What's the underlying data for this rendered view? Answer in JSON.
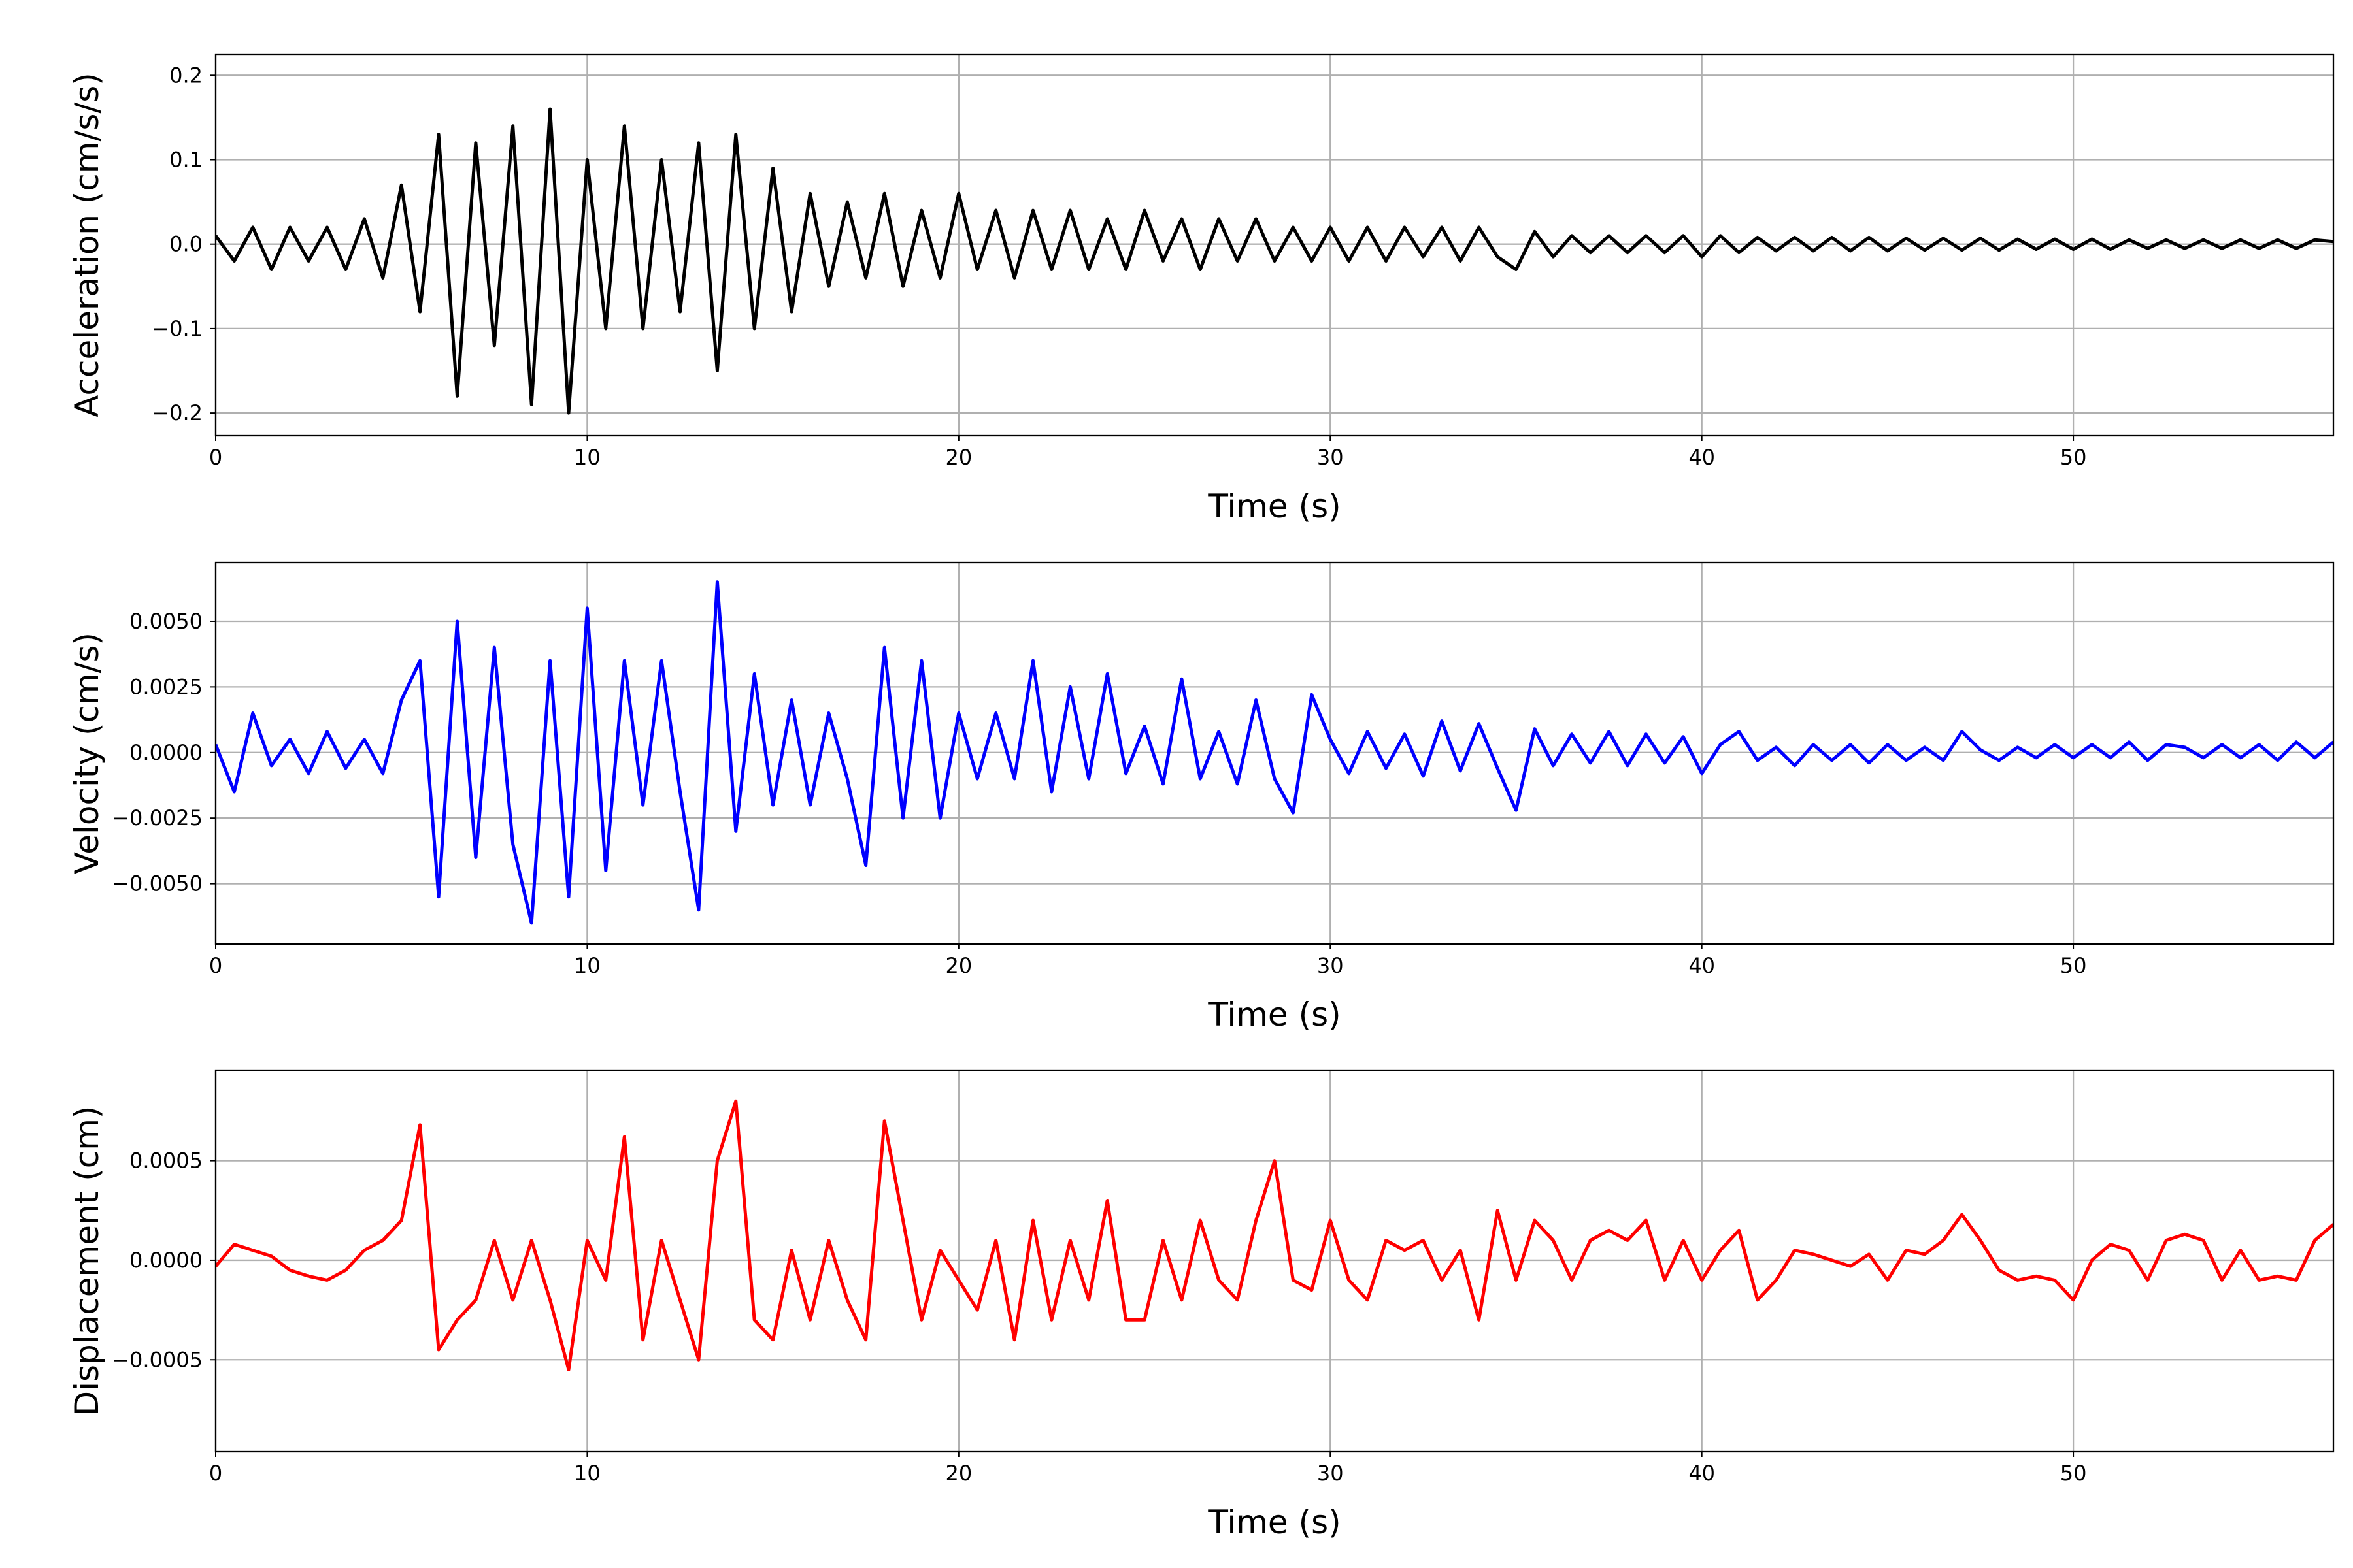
{
  "chart_data": [
    {
      "type": "line",
      "xlabel": "Time (s)",
      "ylabel": "Acceleration (cm/s/s)",
      "xlim": [
        0,
        57
      ],
      "xticks": [
        0,
        10,
        20,
        30,
        40,
        50
      ],
      "ylim": [
        -0.227,
        0.225
      ],
      "yticks": [
        {
          "value": -0.2,
          "label": "−0.2"
        },
        {
          "value": -0.1,
          "label": "−0.1"
        },
        {
          "value": 0,
          "label": "0.0"
        },
        {
          "value": 0.1,
          "label": "0.1"
        },
        {
          "value": 0.2,
          "label": "0.2"
        }
      ],
      "grid": true,
      "x": [
        0,
        0.5,
        1,
        1.5,
        2,
        2.5,
        3,
        3.5,
        4,
        4.5,
        5,
        5.5,
        6,
        6.5,
        7,
        7.5,
        8,
        8.5,
        9,
        9.5,
        10,
        10.5,
        11,
        11.5,
        12,
        12.5,
        13,
        13.5,
        14,
        14.5,
        15,
        15.5,
        16,
        16.5,
        17,
        17.5,
        18,
        18.5,
        19,
        19.5,
        20,
        20.5,
        21,
        21.5,
        22,
        22.5,
        23,
        23.5,
        24,
        24.5,
        25,
        25.5,
        26,
        26.5,
        27,
        27.5,
        28,
        28.5,
        29,
        29.5,
        30,
        30.5,
        31,
        31.5,
        32,
        32.5,
        33,
        33.5,
        34,
        34.5,
        35,
        35.5,
        36,
        36.5,
        37,
        37.5,
        38,
        38.5,
        39,
        39.5,
        40,
        40.5,
        41,
        41.5,
        42,
        42.5,
        43,
        43.5,
        44,
        44.5,
        45,
        45.5,
        46,
        46.5,
        47,
        47.5,
        48,
        48.5,
        49,
        49.5,
        50,
        50.5,
        51,
        51.5,
        52,
        52.5,
        53,
        53.5,
        54,
        54.5,
        55,
        55.5,
        56,
        56.5,
        57
      ],
      "series": [
        {
          "name": "Acceleration",
          "color": "#000000",
          "values": [
            0.01,
            -0.02,
            0.02,
            -0.03,
            0.02,
            -0.02,
            0.02,
            -0.03,
            0.03,
            -0.04,
            0.07,
            -0.08,
            0.13,
            -0.18,
            0.12,
            -0.12,
            0.14,
            -0.19,
            0.16,
            -0.2,
            0.1,
            -0.1,
            0.14,
            -0.1,
            0.1,
            -0.08,
            0.12,
            -0.15,
            0.13,
            -0.1,
            0.09,
            -0.08,
            0.06,
            -0.05,
            0.05,
            -0.04,
            0.06,
            -0.05,
            0.04,
            -0.04,
            0.06,
            -0.03,
            0.04,
            -0.04,
            0.04,
            -0.03,
            0.04,
            -0.03,
            0.03,
            -0.03,
            0.04,
            -0.02,
            0.03,
            -0.03,
            0.03,
            -0.02,
            0.03,
            -0.02,
            0.02,
            -0.02,
            0.02,
            -0.02,
            0.02,
            -0.02,
            0.02,
            -0.015,
            0.02,
            -0.02,
            0.02,
            -0.015,
            -0.03,
            0.015,
            -0.015,
            0.01,
            -0.01,
            0.01,
            -0.01,
            0.01,
            -0.01,
            0.01,
            -0.015,
            0.01,
            -0.01,
            0.008,
            -0.008,
            0.008,
            -0.008,
            0.008,
            -0.008,
            0.008,
            -0.008,
            0.007,
            -0.007,
            0.007,
            -0.007,
            0.007,
            -0.007,
            0.006,
            -0.006,
            0.006,
            -0.006,
            0.006,
            -0.006,
            0.005,
            -0.005,
            0.005,
            -0.005,
            0.005,
            -0.005,
            0.005,
            -0.005,
            0.005,
            -0.005,
            0.005,
            0.003
          ]
        }
      ]
    },
    {
      "type": "line",
      "xlabel": "Time (s)",
      "ylabel": "Velocity (cm/s)",
      "xlim": [
        0,
        57
      ],
      "xticks": [
        0,
        10,
        20,
        30,
        40,
        50
      ],
      "ylim": [
        -0.0073,
        0.00724
      ],
      "yticks": [
        {
          "value": -0.005,
          "label": "−0.0050"
        },
        {
          "value": -0.0025,
          "label": "−0.0025"
        },
        {
          "value": 0,
          "label": "0.0000"
        },
        {
          "value": 0.0025,
          "label": "0.0025"
        },
        {
          "value": 0.005,
          "label": "0.0050"
        }
      ],
      "grid": true,
      "x": [
        0,
        0.5,
        1,
        1.5,
        2,
        2.5,
        3,
        3.5,
        4,
        4.5,
        5,
        5.5,
        6,
        6.5,
        7,
        7.5,
        8,
        8.5,
        9,
        9.5,
        10,
        10.5,
        11,
        11.5,
        12,
        12.5,
        13,
        13.5,
        14,
        14.5,
        15,
        15.5,
        16,
        16.5,
        17,
        17.5,
        18,
        18.5,
        19,
        19.5,
        20,
        20.5,
        21,
        21.5,
        22,
        22.5,
        23,
        23.5,
        24,
        24.5,
        25,
        25.5,
        26,
        26.5,
        27,
        27.5,
        28,
        28.5,
        29,
        29.5,
        30,
        30.5,
        31,
        31.5,
        32,
        32.5,
        33,
        33.5,
        34,
        34.5,
        35,
        35.5,
        36,
        36.5,
        37,
        37.5,
        38,
        38.5,
        39,
        39.5,
        40,
        40.5,
        41,
        41.5,
        42,
        42.5,
        43,
        43.5,
        44,
        44.5,
        45,
        45.5,
        46,
        46.5,
        47,
        47.5,
        48,
        48.5,
        49,
        49.5,
        50,
        50.5,
        51,
        51.5,
        52,
        52.5,
        53,
        53.5,
        54,
        54.5,
        55,
        55.5,
        56,
        56.5,
        57
      ],
      "series": [
        {
          "name": "Velocity",
          "color": "#0000ff",
          "values": [
            0.0003,
            -0.0015,
            0.0015,
            -0.0005,
            0.0005,
            -0.0008,
            0.0008,
            -0.0006,
            0.0005,
            -0.0008,
            0.002,
            0.0035,
            -0.0055,
            0.005,
            -0.004,
            0.004,
            -0.0035,
            -0.0065,
            0.0035,
            -0.0055,
            0.0055,
            -0.0045,
            0.0035,
            -0.002,
            0.0035,
            -0.0015,
            -0.006,
            0.0065,
            -0.003,
            0.003,
            -0.002,
            0.002,
            -0.002,
            0.0015,
            -0.001,
            -0.0043,
            0.004,
            -0.0025,
            0.0035,
            -0.0025,
            0.0015,
            -0.001,
            0.0015,
            -0.001,
            0.0035,
            -0.0015,
            0.0025,
            -0.001,
            0.003,
            -0.0008,
            0.001,
            -0.0012,
            0.0028,
            -0.001,
            0.0008,
            -0.0012,
            0.002,
            -0.001,
            -0.0023,
            0.0022,
            0.0005,
            -0.0008,
            0.0008,
            -0.0006,
            0.0007,
            -0.0009,
            0.0012,
            -0.0007,
            0.0011,
            -0.0006,
            -0.0022,
            0.0009,
            -0.0005,
            0.0007,
            -0.0004,
            0.0008,
            -0.0005,
            0.0007,
            -0.0004,
            0.0006,
            -0.0008,
            0.0003,
            0.0008,
            -0.0003,
            0.0002,
            -0.0005,
            0.0003,
            -0.0003,
            0.0003,
            -0.0004,
            0.0003,
            -0.0003,
            0.0002,
            -0.0003,
            0.0008,
            0.0001,
            -0.0003,
            0.0002,
            -0.0002,
            0.0003,
            -0.0002,
            0.0003,
            -0.0002,
            0.0004,
            -0.0003,
            0.0003,
            0.0002,
            -0.0002,
            0.0003,
            -0.0002,
            0.0003,
            -0.0003,
            0.0004,
            -0.0002,
            0.0004
          ]
        }
      ]
    },
    {
      "type": "line",
      "xlabel": "Time (s)",
      "ylabel": "Displacement (cm)",
      "xlim": [
        0,
        57
      ],
      "xticks": [
        0,
        10,
        20,
        30,
        40,
        50
      ],
      "ylim": [
        -0.000962,
        0.000955
      ],
      "yticks": [
        {
          "value": -0.0005,
          "label": "−0.0005"
        },
        {
          "value": 0,
          "label": "0.0000"
        },
        {
          "value": 0.0005,
          "label": "0.0005"
        }
      ],
      "grid": true,
      "x": [
        0,
        0.5,
        1,
        1.5,
        2,
        2.5,
        3,
        3.5,
        4,
        4.5,
        5,
        5.5,
        6,
        6.5,
        7,
        7.5,
        8,
        8.5,
        9,
        9.5,
        10,
        10.5,
        11,
        11.5,
        12,
        12.5,
        13,
        13.5,
        14,
        14.5,
        15,
        15.5,
        16,
        16.5,
        17,
        17.5,
        18,
        18.5,
        19,
        19.5,
        20,
        20.5,
        21,
        21.5,
        22,
        22.5,
        23,
        23.5,
        24,
        24.5,
        25,
        25.5,
        26,
        26.5,
        27,
        27.5,
        28,
        28.5,
        29,
        29.5,
        30,
        30.5,
        31,
        31.5,
        32,
        32.5,
        33,
        33.5,
        34,
        34.5,
        35,
        35.5,
        36,
        36.5,
        37,
        37.5,
        38,
        38.5,
        39,
        39.5,
        40,
        40.5,
        41,
        41.5,
        42,
        42.5,
        43,
        43.5,
        44,
        44.5,
        45,
        45.5,
        46,
        46.5,
        47,
        47.5,
        48,
        48.5,
        49,
        49.5,
        50,
        50.5,
        51,
        51.5,
        52,
        52.5,
        53,
        53.5,
        54,
        54.5,
        55,
        55.5,
        56,
        56.5,
        57
      ],
      "series": [
        {
          "name": "Displacement",
          "color": "#ff0000",
          "values": [
            -3e-05,
            8e-05,
            5e-05,
            2e-05,
            -5e-05,
            -8e-05,
            -0.0001,
            -5e-05,
            5e-05,
            0.0001,
            0.0002,
            0.00068,
            -0.00045,
            -0.0003,
            -0.0002,
            0.0001,
            -0.0002,
            0.0001,
            -0.0002,
            -0.00055,
            0.0001,
            -0.0001,
            0.00062,
            -0.0004,
            0.0001,
            -0.0002,
            -0.0005,
            0.0005,
            0.0008,
            -0.0003,
            -0.0004,
            5e-05,
            -0.0003,
            0.0001,
            -0.0002,
            -0.0004,
            0.0007,
            0.0002,
            -0.0003,
            5e-05,
            -0.0001,
            -0.00025,
            0.0001,
            -0.0004,
            0.0002,
            -0.0003,
            0.0001,
            -0.0002,
            0.0003,
            -0.0003,
            -0.0003,
            0.0001,
            -0.0002,
            0.0002,
            -0.0001,
            -0.0002,
            0.0002,
            0.0005,
            -0.0001,
            -0.00015,
            0.0002,
            -0.0001,
            -0.0002,
            0.0001,
            5e-05,
            0.0001,
            -0.0001,
            5e-05,
            -0.0003,
            0.00025,
            -0.0001,
            0.0002,
            0.0001,
            -0.0001,
            0.0001,
            0.00015,
            0.0001,
            0.0002,
            -0.0001,
            0.0001,
            -0.0001,
            5e-05,
            0.00015,
            -0.0002,
            -0.0001,
            5e-05,
            3e-05,
            0,
            -3e-05,
            3e-05,
            -0.0001,
            5e-05,
            3e-05,
            0.0001,
            0.00023,
            0.0001,
            -5e-05,
            -0.0001,
            -8e-05,
            -0.0001,
            -0.0002,
            0,
            8e-05,
            5e-05,
            -0.0001,
            0.0001,
            0.00013,
            0.0001,
            -0.0001,
            5e-05,
            -0.0001,
            -8e-05,
            -0.0001,
            0.0001,
            0.00018
          ]
        }
      ]
    }
  ]
}
